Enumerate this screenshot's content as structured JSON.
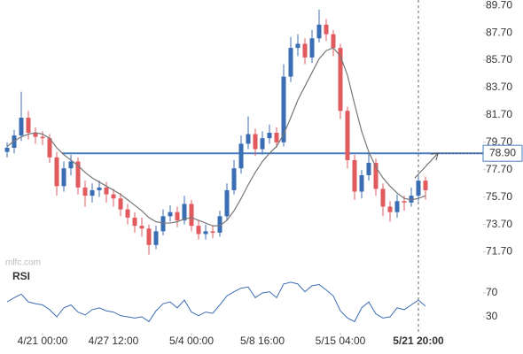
{
  "chart_data": {
    "type": "candlestick",
    "open": [
      79.0,
      79.3,
      80.2,
      81.5,
      80.4,
      80.1,
      80.0,
      78.6,
      76.5,
      77.8,
      78.3,
      76.4,
      75.8,
      76.2,
      76.4,
      75.9,
      75.6,
      74.8,
      74.2,
      73.6,
      73.4,
      72.2,
      73.2,
      74.3,
      74.6,
      74.0,
      75.2,
      73.6,
      73.0,
      73.2,
      73.1,
      74.3,
      76.2,
      77.8,
      79.6,
      80.3,
      79.2,
      80.0,
      80.4,
      79.7,
      84.5,
      86.6,
      86.9,
      85.9,
      87.3,
      88.3,
      87.6,
      86.6,
      82.0,
      78.4,
      76.1,
      77.3,
      78.2,
      76.3,
      75.0,
      74.6,
      75.4,
      75.3,
      75.8,
      76.9
    ],
    "high": [
      79.7,
      80.6,
      83.4,
      82.0,
      80.8,
      80.5,
      80.3,
      79.0,
      78.3,
      78.8,
      78.6,
      76.9,
      76.7,
      76.9,
      76.8,
      76.3,
      76.0,
      75.2,
      74.6,
      74.2,
      73.7,
      73.6,
      74.8,
      75.1,
      75.0,
      75.8,
      75.5,
      74.0,
      73.7,
      73.6,
      74.7,
      76.7,
      78.4,
      80.2,
      81.6,
      80.7,
      80.5,
      81.0,
      80.8,
      85.4,
      87.4,
      87.6,
      87.3,
      87.9,
      89.4,
      88.7,
      87.9,
      86.9,
      82.3,
      78.8,
      77.7,
      78.9,
      78.5,
      76.7,
      75.4,
      75.9,
      75.8,
      76.4,
      77.3,
      77.2
    ],
    "low": [
      78.6,
      78.9,
      79.8,
      79.9,
      79.6,
      79.5,
      78.2,
      75.8,
      76.1,
      77.3,
      75.9,
      75.0,
      75.3,
      75.7,
      75.3,
      75.0,
      74.3,
      73.7,
      73.1,
      72.8,
      71.5,
      71.9,
      72.9,
      73.9,
      73.5,
      73.7,
      73.2,
      72.6,
      72.6,
      72.7,
      72.8,
      74.0,
      75.9,
      77.4,
      79.2,
      78.7,
      78.8,
      79.6,
      79.3,
      79.4,
      84.1,
      86.0,
      85.4,
      85.5,
      87.0,
      87.1,
      86.0,
      81.4,
      77.8,
      75.5,
      75.6,
      76.9,
      75.8,
      74.3,
      73.9,
      74.2,
      74.7,
      75.0,
      75.4,
      75.5
    ],
    "close": [
      79.3,
      80.2,
      81.5,
      80.4,
      80.1,
      80.0,
      78.6,
      76.5,
      77.8,
      78.3,
      76.4,
      75.8,
      76.2,
      76.4,
      75.9,
      75.6,
      74.8,
      74.2,
      73.6,
      73.4,
      72.2,
      73.2,
      74.3,
      74.6,
      74.0,
      75.2,
      73.6,
      73.0,
      73.2,
      73.1,
      74.3,
      76.2,
      77.8,
      79.6,
      80.3,
      79.2,
      80.0,
      80.4,
      79.7,
      84.5,
      86.6,
      86.9,
      85.9,
      87.3,
      88.3,
      87.6,
      86.6,
      82.0,
      78.4,
      76.1,
      77.3,
      78.2,
      76.3,
      75.0,
      74.6,
      75.4,
      75.3,
      75.8,
      76.9,
      76.2
    ],
    "up_color": "#3b6db3",
    "down_color": "#e05a5e",
    "moving_average": {
      "color": "#777777",
      "values": [
        79.4,
        79.8,
        80.1,
        80.3,
        80.4,
        80.3,
        80.0,
        79.3,
        78.8,
        78.4,
        78.0,
        77.5,
        77.1,
        76.8,
        76.5,
        76.2,
        75.9,
        75.5,
        75.1,
        74.7,
        74.2,
        73.9,
        73.8,
        73.8,
        73.9,
        74.1,
        74.2,
        74.0,
        73.8,
        73.6,
        73.6,
        74.0,
        74.7,
        75.6,
        76.6,
        77.5,
        78.3,
        78.9,
        79.4,
        80.3,
        81.5,
        82.8,
        83.8,
        84.8,
        85.8,
        86.4,
        86.6,
        86.0,
        84.6,
        82.5,
        80.5,
        79.0,
        77.9,
        77.1,
        76.5,
        76.0,
        75.6,
        75.5,
        75.6,
        75.8
      ]
    },
    "ylim": [
      70.7,
      90.1
    ],
    "yticks": [
      {
        "value": 89.7,
        "label": "89.70"
      },
      {
        "value": 87.7,
        "label": "87.70"
      },
      {
        "value": 85.7,
        "label": "85.70"
      },
      {
        "value": 83.7,
        "label": "83.70"
      },
      {
        "value": 81.7,
        "label": "81.70"
      },
      {
        "value": 79.7,
        "label": "79.70"
      },
      {
        "value": 77.7,
        "label": "77.70"
      },
      {
        "value": 75.7,
        "label": "75.70"
      },
      {
        "value": 73.7,
        "label": "73.70"
      },
      {
        "value": 71.7,
        "label": "71.70"
      }
    ],
    "level": {
      "value": 78.9,
      "label": "78.90",
      "color": "#4a7cc0"
    },
    "xticks": [
      {
        "value": 5,
        "label": "4/21 00:00"
      },
      {
        "value": 15,
        "label": "4/27 12:00"
      },
      {
        "value": 26,
        "label": "5/4 00:00"
      },
      {
        "value": 36,
        "label": "5/8 16:00"
      },
      {
        "value": 47,
        "label": "5/15 04:00"
      },
      {
        "value": 58,
        "label": "5/21 20:00"
      }
    ],
    "watermark": "mlfc.com",
    "rsi": {
      "title": "RSI",
      "color": "#3b6db3",
      "ylim": [
        0,
        100
      ],
      "yticks": [
        70,
        30
      ],
      "values": [
        55,
        62,
        68,
        55,
        52,
        50,
        42,
        30,
        45,
        50,
        38,
        33,
        42,
        45,
        40,
        38,
        32,
        30,
        28,
        30,
        22,
        40,
        52,
        55,
        45,
        58,
        38,
        32,
        38,
        36,
        50,
        65,
        72,
        78,
        80,
        62,
        70,
        72,
        62,
        85,
        88,
        85,
        72,
        82,
        84,
        75,
        65,
        40,
        28,
        22,
        45,
        55,
        35,
        28,
        30,
        45,
        42,
        50,
        58,
        48
      ]
    }
  }
}
